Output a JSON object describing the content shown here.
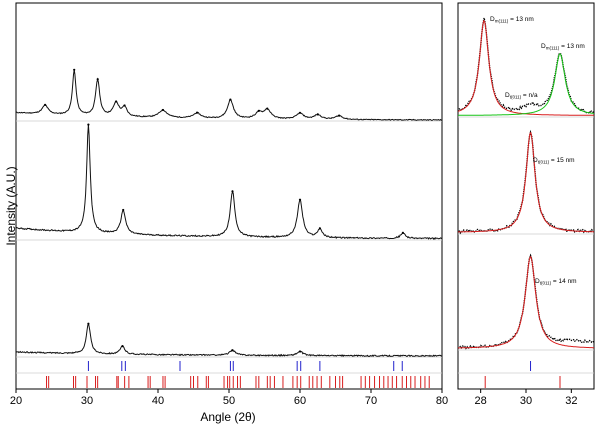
{
  "chart_data": [
    {
      "type": "scatter",
      "panel": "main",
      "xlabel": "Angle (2θ)",
      "ylabel": "Intensity (A.U.)",
      "xlim": [
        20,
        80
      ],
      "xticks": [
        20,
        30,
        40,
        50,
        60,
        70,
        80
      ],
      "xtick_labels": [
        "20",
        "30",
        "40",
        "50",
        "60",
        "70",
        "80"
      ],
      "grid": false,
      "stacked_patterns": [
        {
          "baseline": 0.1,
          "peaks": [
            [
              24.1,
              0.12,
              0.5
            ],
            [
              28.2,
              0.6,
              0.3
            ],
            [
              31.5,
              0.48,
              0.35
            ],
            [
              34.1,
              0.18,
              0.5
            ],
            [
              35.3,
              0.12,
              0.4
            ],
            [
              40.7,
              0.1,
              0.7
            ],
            [
              45.5,
              0.07,
              0.6
            ],
            [
              50.2,
              0.25,
              0.5
            ],
            [
              54.2,
              0.08,
              0.6
            ],
            [
              55.4,
              0.12,
              0.6
            ],
            [
              60.0,
              0.08,
              0.6
            ],
            [
              62.5,
              0.06,
              0.6
            ],
            [
              65.5,
              0.05,
              0.6
            ]
          ]
        },
        {
          "baseline": 0.1,
          "peaks": [
            [
              30.2,
              1.0,
              0.3
            ],
            [
              35.1,
              0.22,
              0.4
            ],
            [
              50.5,
              0.42,
              0.4
            ],
            [
              60.0,
              0.35,
              0.45
            ],
            [
              62.8,
              0.08,
              0.4
            ],
            [
              74.5,
              0.05,
              0.4
            ]
          ]
        },
        {
          "baseline": 0.04,
          "peaks": [
            [
              30.2,
              0.3,
              0.35
            ],
            [
              35.0,
              0.08,
              0.4
            ],
            [
              50.5,
              0.05,
              0.5
            ],
            [
              60.0,
              0.04,
              0.5
            ]
          ]
        }
      ],
      "reference_lines": {
        "blue": [
          30.2,
          34.9,
          35.4,
          43.1,
          50.2,
          50.6,
          59.6,
          60.1,
          62.8,
          73.2,
          74.4
        ],
        "red": [
          24.3,
          24.6,
          28.1,
          28.4,
          30.0,
          31.2,
          31.5,
          34.2,
          34.4,
          35.3,
          35.9,
          38.6,
          38.9,
          40.7,
          41.0,
          44.6,
          45.0,
          45.6,
          46.8,
          47.1,
          49.3,
          49.8,
          50.1,
          50.6,
          51.2,
          51.6,
          53.8,
          54.2,
          55.4,
          55.8,
          56.4,
          57.6,
          59.0,
          59.6,
          60.1,
          61.3,
          61.8,
          62.4,
          63.0,
          64.2,
          65.0,
          65.6,
          66.0,
          68.6,
          69.2,
          69.8,
          70.5,
          71.2,
          71.8,
          72.4,
          73.0,
          73.6,
          74.4,
          75.0,
          75.6,
          76.2,
          77.0,
          77.6,
          78.2
        ]
      }
    },
    {
      "type": "line",
      "panel": "zoom",
      "xlim": [
        27,
        33
      ],
      "xticks": [
        28,
        30,
        32
      ],
      "xtick_labels": [
        "28",
        "30",
        "32"
      ],
      "colors": {
        "data": "#000000",
        "fit": "#d81e1e",
        "fit2": "#16c416",
        "ref_blue": "#2222cc",
        "ref_red": "#d81e1e"
      },
      "annotations": [
        {
          "text": "D",
          "sub": "m(111)",
          "tail": " = 13 nm"
        },
        {
          "text": "D",
          "sub": "m(111)",
          "tail": " = 13 nm"
        },
        {
          "text": "D",
          "sub": "t(011)",
          "tail": " = n/a"
        },
        {
          "text": "D",
          "sub": "t(011)",
          "tail": " = 15 nm"
        },
        {
          "text": "D",
          "sub": "t(011)",
          "tail": " = 14 nm"
        }
      ],
      "reference_lines": {
        "blue": [
          30.2
        ],
        "red": [
          28.2,
          31.5
        ]
      }
    }
  ]
}
